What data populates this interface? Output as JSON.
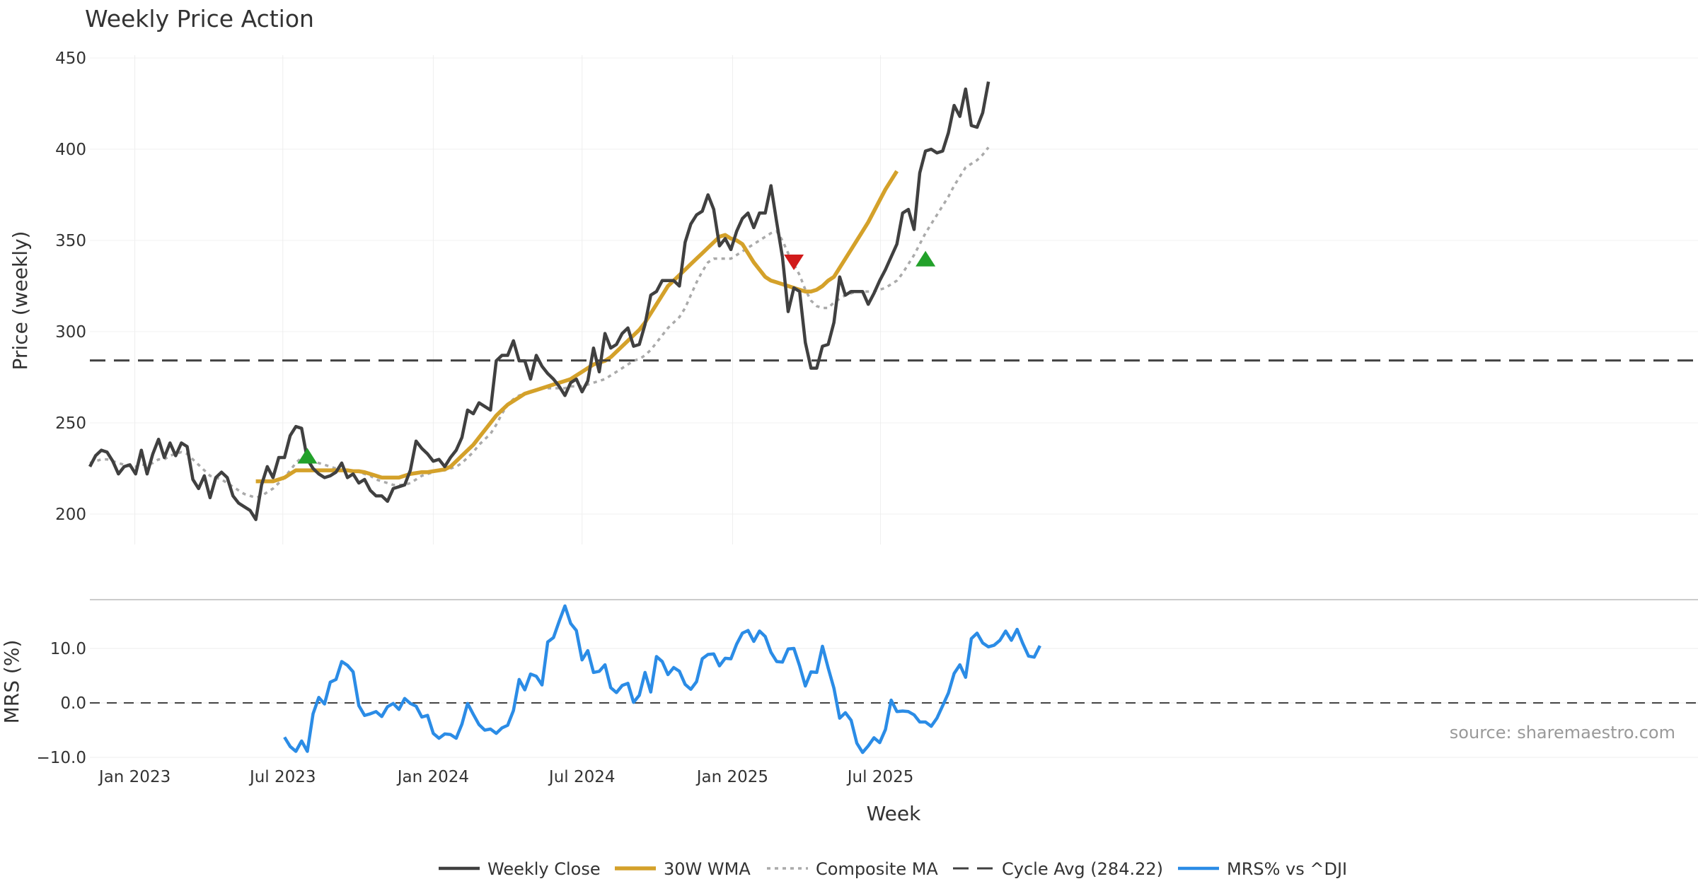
{
  "chart_data": {
    "type": "line",
    "title": "Weekly Price Action",
    "source": "source: sharemaestro.com",
    "xlabel": "Week",
    "x_ticks": [
      "Jan 2023",
      "Jul 2023",
      "Jan 2024",
      "Jul 2024",
      "Jan 2025",
      "Jul 2025"
    ],
    "x_start": "2022-11-07",
    "legend_position": "bottom-center",
    "grid": true,
    "panels": [
      {
        "name": "price",
        "ylabel": "Price (weekly)",
        "ylim": [
          180,
          450
        ],
        "y_ticks": [
          "200",
          "250",
          "300",
          "350",
          "400",
          "450"
        ]
      },
      {
        "name": "mrs",
        "ylabel": "MRS (%)",
        "ylim": [
          -10,
          18
        ],
        "y_ticks": [
          "−10.0",
          "0.0",
          "10.0"
        ]
      }
    ],
    "series": [
      {
        "name": "Weekly Close",
        "panel": "price",
        "color": "#404040",
        "style": "solid",
        "values": [
          226,
          232,
          235,
          234,
          229,
          222,
          226,
          227,
          222,
          235,
          222,
          233,
          241,
          231,
          239,
          232,
          239,
          237,
          219,
          214,
          221,
          209,
          220,
          223,
          220,
          210,
          206,
          204,
          202,
          197,
          216,
          226,
          220,
          231,
          231,
          243,
          248,
          247,
          230,
          225,
          222,
          220,
          221,
          223,
          228,
          220,
          222,
          217,
          219,
          213,
          210,
          210,
          207,
          214,
          215,
          216,
          224,
          240,
          236,
          233,
          229,
          230,
          226,
          231,
          235,
          242,
          257,
          255,
          261,
          259,
          257,
          284,
          287,
          287,
          295,
          284,
          284,
          274,
          287,
          281,
          277,
          274,
          270,
          265,
          272,
          274,
          267,
          273,
          291,
          278,
          299,
          291,
          293,
          299,
          302,
          292,
          293,
          304,
          320,
          322,
          328,
          328,
          328,
          325,
          349,
          359,
          364,
          366,
          375,
          367,
          347,
          351,
          345,
          355,
          362,
          365,
          357,
          365,
          365,
          380,
          360,
          341,
          311,
          324,
          322,
          294,
          280,
          280,
          292,
          293,
          305,
          330,
          320,
          322,
          322,
          322,
          315,
          321,
          328,
          334,
          341,
          348,
          365,
          367,
          356,
          387,
          399,
          400,
          398,
          399,
          409,
          424,
          418,
          433,
          413,
          412,
          420,
          437
        ]
      },
      {
        "name": "30W WMA",
        "panel": "price",
        "color": "#d4a12a",
        "style": "solid",
        "start_index": 29,
        "values": [
          218,
          218,
          218,
          218,
          219,
          220,
          222,
          224,
          224,
          224,
          224,
          224,
          224,
          224,
          224,
          224,
          224,
          223.5,
          223.5,
          223,
          222,
          221,
          220,
          220,
          220,
          220,
          221,
          222,
          222.5,
          223,
          223,
          223.5,
          224,
          224.5,
          226,
          229,
          232,
          235,
          238,
          242,
          246,
          250,
          254,
          257,
          260,
          262,
          264,
          266,
          267,
          268,
          269,
          270,
          271,
          272,
          273,
          274,
          276,
          278,
          280,
          282,
          283,
          284,
          286,
          289,
          292,
          295,
          298,
          301,
          305,
          310,
          315,
          320,
          325,
          328,
          331,
          334,
          337,
          340,
          343,
          346,
          349,
          352,
          353,
          351,
          350,
          348,
          343,
          338,
          334,
          330,
          328,
          327,
          326,
          325,
          324,
          323,
          322,
          322,
          323,
          325,
          328,
          330,
          335,
          340,
          345,
          350,
          355,
          360,
          366,
          372,
          378,
          383,
          388
        ]
      },
      {
        "name": "Composite MA",
        "panel": "price",
        "color": "#aaaaaa",
        "style": "dotted",
        "values": [
          228,
          229,
          230,
          230,
          229,
          228,
          227,
          227,
          226,
          227,
          227,
          228,
          230,
          230,
          232,
          233,
          234,
          233,
          230,
          227,
          224,
          221,
          220,
          219,
          217,
          215,
          213,
          211,
          210,
          209,
          210,
          212,
          214,
          217,
          220,
          224,
          228,
          231,
          231,
          229,
          228,
          227,
          226,
          225,
          224,
          224,
          224,
          223,
          222,
          221,
          219,
          218,
          217,
          216,
          216,
          216,
          217,
          219,
          221,
          222,
          223,
          224,
          224,
          225,
          226,
          228,
          231,
          234,
          238,
          241,
          244,
          249,
          255,
          260,
          263,
          265,
          266,
          267,
          268,
          269,
          269,
          269,
          269,
          269,
          270,
          270,
          270,
          271,
          272,
          273,
          274,
          276,
          278,
          280,
          282,
          284,
          285,
          287,
          290,
          294,
          298,
          302,
          305,
          308,
          313,
          320,
          327,
          333,
          338,
          340,
          340,
          340,
          340,
          342,
          344,
          346,
          348,
          350,
          352,
          354,
          355,
          350,
          343,
          337,
          331,
          323,
          317,
          314,
          313,
          313,
          316,
          318,
          320,
          321,
          322,
          322,
          322,
          322,
          323,
          324,
          326,
          328,
          332,
          337,
          342,
          348,
          354,
          359,
          364,
          369,
          374,
          380,
          385,
          390,
          392,
          394,
          397,
          401
        ]
      },
      {
        "name": "Cycle Avg (284.22)",
        "panel": "price",
        "color": "#404040",
        "style": "dashed",
        "values": [
          284.22
        ]
      },
      {
        "name": "MRS% vs ^DJI",
        "panel": "mrs",
        "color": "#2b8ce6",
        "style": "solid",
        "start_index": 34,
        "values": [
          -6.3,
          -8,
          -8.9,
          -7,
          -8.9,
          -2,
          1,
          -0.2,
          3.8,
          4.3,
          7.6,
          6.9,
          5.7,
          -0.5,
          -2.3,
          -2,
          -1.6,
          -2.5,
          -0.7,
          -0.1,
          -1.2,
          0.8,
          -0.1,
          -0.6,
          -2.6,
          -2.3,
          -5.6,
          -6.5,
          -5.7,
          -5.8,
          -6.5,
          -3.9,
          -0.1,
          -2.1,
          -4,
          -5,
          -4.8,
          -5.6,
          -4.6,
          -4.1,
          -1.4,
          4.3,
          2.4,
          5.3,
          4.9,
          3.3,
          11.2,
          12,
          15,
          17.8,
          14.6,
          13.3,
          7.9,
          9.6,
          5.6,
          5.8,
          7,
          2.8,
          1.9,
          3.2,
          3.6,
          0.1,
          1.4,
          5.6,
          2,
          8.5,
          7.6,
          5.2,
          6.5,
          5.8,
          3.4,
          2.5,
          3.9,
          8.1,
          8.9,
          9,
          6.8,
          8.2,
          8.1,
          10.8,
          12.8,
          13.3,
          11.3,
          13.2,
          12.2,
          9.3,
          7.6,
          7.5,
          9.9,
          10,
          6.8,
          3.1,
          5.7,
          5.6,
          10.4,
          6.4,
          2.7,
          -2.8,
          -1.8,
          -3.2,
          -7.4,
          -9.1,
          -7.9,
          -6.4,
          -7.3,
          -4.9,
          0.5,
          -1.6,
          -1.5,
          -1.6,
          -2.2,
          -3.5,
          -3.5,
          -4.3,
          -2.8,
          -0.5,
          1.8,
          5.4,
          7,
          4.7,
          11.8,
          12.8,
          11,
          10.3,
          10.6,
          11.5,
          13.2,
          11.5,
          13.5,
          10.9,
          8.6,
          8.4,
          10.5
        ]
      }
    ],
    "markers": [
      {
        "type": "buy",
        "shape": "triangle-up",
        "color": "#22a12a",
        "index": 38,
        "value": 232
      },
      {
        "type": "sell",
        "shape": "triangle-down",
        "color": "#d11a1a",
        "index": 123,
        "value": 338
      },
      {
        "type": "buy",
        "shape": "triangle-up",
        "color": "#22a12a",
        "index": 146,
        "value": 340
      }
    ]
  }
}
